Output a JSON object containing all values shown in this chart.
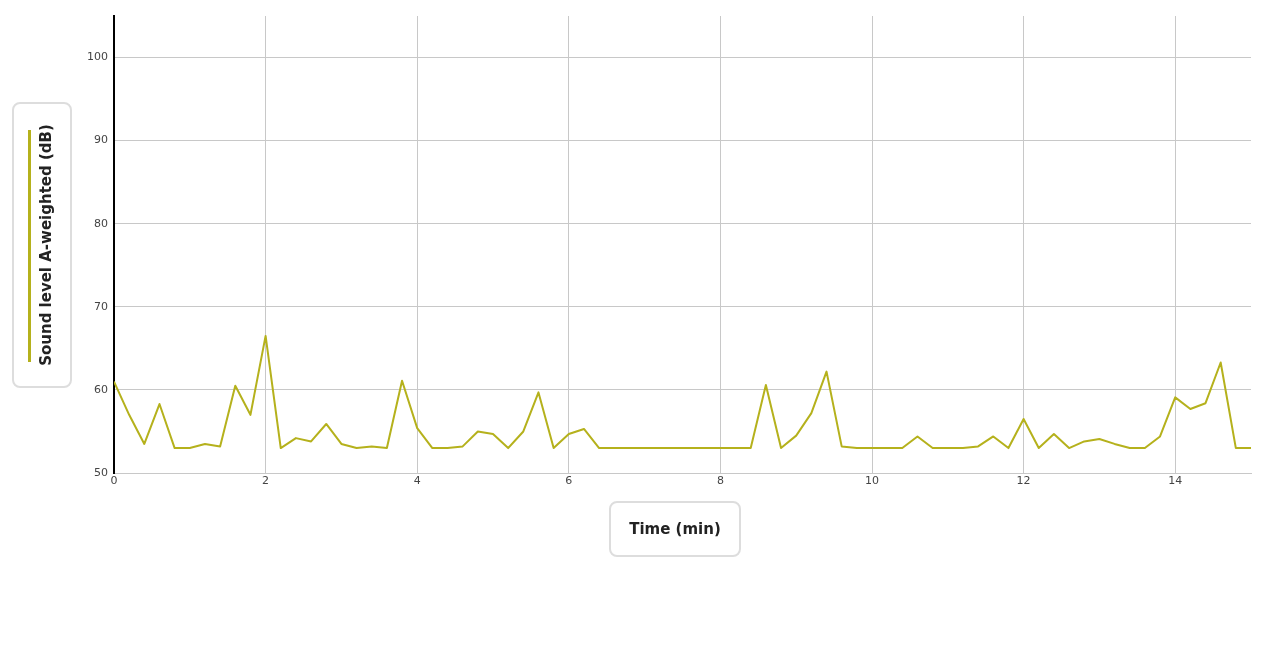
{
  "chart_data": {
    "type": "line",
    "xlabel": "Time (min)",
    "x": [
      0,
      0.2,
      0.4,
      0.6,
      0.8,
      1,
      1.2,
      1.4,
      1.6,
      1.8,
      2,
      2.2,
      2.4,
      2.6,
      2.8,
      3,
      3.2,
      3.4,
      3.6,
      3.8,
      4,
      4.2,
      4.4,
      4.6,
      4.8,
      5,
      5.2,
      5.4,
      5.6,
      5.8,
      6,
      6.2,
      6.4,
      6.6,
      6.8,
      7,
      7.2,
      7.4,
      7.6,
      7.8,
      8,
      8.2,
      8.4,
      8.6,
      8.8,
      9,
      9.2,
      9.4,
      9.6,
      9.8,
      10,
      10.2,
      10.4,
      10.6,
      10.8,
      11,
      11.2,
      11.4,
      11.6,
      11.8,
      12,
      12.2,
      12.4,
      12.6,
      12.8,
      13,
      13.2,
      13.4,
      13.6,
      13.8,
      14,
      14.2,
      14.4,
      14.6,
      14.8,
      15
    ],
    "series": [
      {
        "name": "Sound level A-weighted (dB)",
        "color": "#b5b11c",
        "values": [
          61,
          57,
          53.5,
          58.3,
          53,
          53,
          53.5,
          53.2,
          60.5,
          57,
          66.5,
          53,
          54.2,
          53.8,
          55.9,
          53.5,
          53,
          53.2,
          53,
          61.1,
          55.4,
          53,
          53,
          53.2,
          55,
          54.7,
          53,
          55,
          59.7,
          53,
          54.7,
          55.3,
          53,
          53,
          53,
          53,
          53,
          53,
          53,
          53,
          53,
          53,
          53,
          60.6,
          53,
          54.5,
          57.2,
          62.2,
          53.2,
          53,
          53,
          53,
          53,
          54.4,
          53,
          53,
          53,
          53.2,
          54.4,
          53,
          56.5,
          53,
          54.7,
          53,
          53.8,
          54.1,
          53.5,
          53,
          53,
          54.4,
          59.1,
          57.7,
          58.4,
          63.3,
          53,
          53
        ]
      }
    ],
    "xlim": [
      0,
      15
    ],
    "xticks": [
      0,
      2,
      4,
      6,
      8,
      10,
      12,
      14
    ],
    "ylim": [
      50,
      105
    ],
    "yticks": [
      50,
      60,
      70,
      80,
      90,
      100
    ],
    "grid": true,
    "legend": "left",
    "marker": "none",
    "line_style": "solid"
  }
}
